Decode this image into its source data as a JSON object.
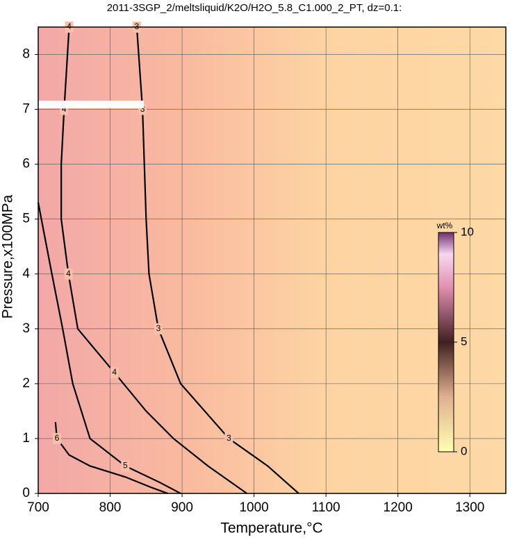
{
  "chart_data": {
    "type": "contour",
    "title": "2011-3SGP_2/meltsliquid/K2O/H2O_5.8_C1.000_2_PT, dz=0.1:",
    "x_label": "Temperature,°C",
    "y_label": "Pressure,x100MPa",
    "xlim": [
      700,
      1350
    ],
    "xticks": [
      700,
      800,
      900,
      1000,
      1100,
      1200,
      1300
    ],
    "ylim": [
      0,
      8.5
    ],
    "yticks": [
      0,
      1,
      2,
      3,
      4,
      5,
      6,
      7,
      8
    ],
    "grid": true,
    "contours": [
      {
        "level": 3,
        "color": "#000000",
        "x": [
          837,
          845,
          850,
          854,
          867,
          898,
          965,
          1019,
          1062
        ],
        "y": [
          8.5,
          7,
          5,
          4,
          3,
          2,
          1,
          0.5,
          0
        ]
      },
      {
        "level": 4,
        "color": "#000000",
        "x": [
          743,
          736,
          732,
          732,
          742,
          755,
          806,
          850,
          888,
          936,
          990
        ],
        "y": [
          8.5,
          7,
          6,
          5,
          4,
          3,
          2.2,
          1.5,
          1,
          0.5,
          0
        ]
      },
      {
        "level": 5,
        "color": "#000000",
        "x": [
          700,
          719,
          734,
          748,
          772,
          821,
          869,
          898
        ],
        "y": [
          5.3,
          4,
          3,
          2,
          1,
          0.5,
          0.2,
          0
        ]
      },
      {
        "level": 6,
        "color": "#000000",
        "x": [
          724,
          726,
          743,
          772,
          821,
          859,
          880
        ],
        "y": [
          1.3,
          1.0,
          0.7,
          0.5,
          0.3,
          0.1,
          0
        ]
      }
    ],
    "colorbar": {
      "label": "wt%",
      "zlim": [
        0,
        10
      ],
      "ticks": [
        0,
        5,
        10
      ]
    }
  }
}
